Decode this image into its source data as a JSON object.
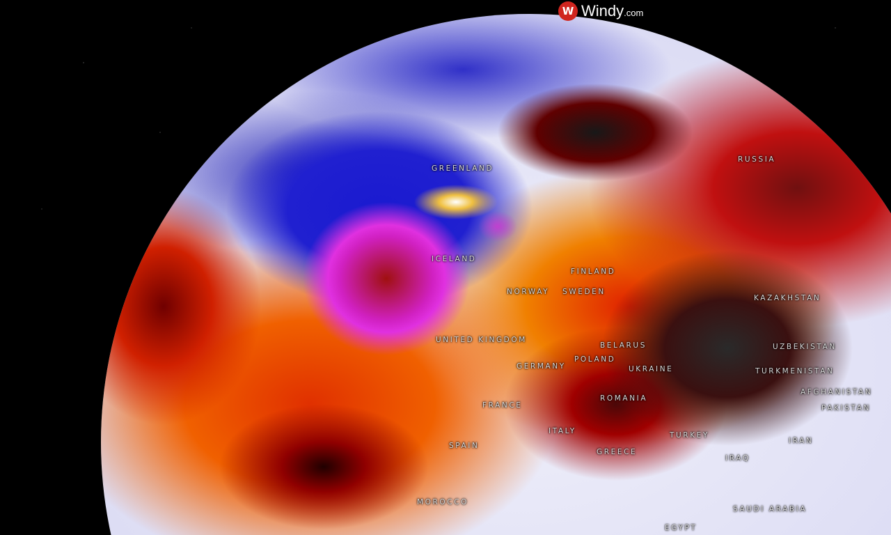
{
  "brand": {
    "name": "Windy",
    "suffix": ".com",
    "logo_color": "#d0251f"
  },
  "map": {
    "labels": [
      "GREENLAND",
      "RUSSIA",
      "ICELAND",
      "FINLAND",
      "NORWAY",
      "SWEDEN",
      "UNITED KINGDOM",
      "BELARUS",
      "POLAND",
      "GERMANY",
      "UKRAINE",
      "KAZAKHSTAN",
      "UZBEKISTAN",
      "TURKMENISTAN",
      "AFGHANISTAN",
      "PAKISTAN",
      "ROMANIA",
      "FRANCE",
      "ITALY",
      "SPAIN",
      "GREECE",
      "TURKEY",
      "IRAN",
      "IRAQ",
      "SAUDI ARABIA",
      "MOROCCO",
      "EGYPT"
    ]
  }
}
